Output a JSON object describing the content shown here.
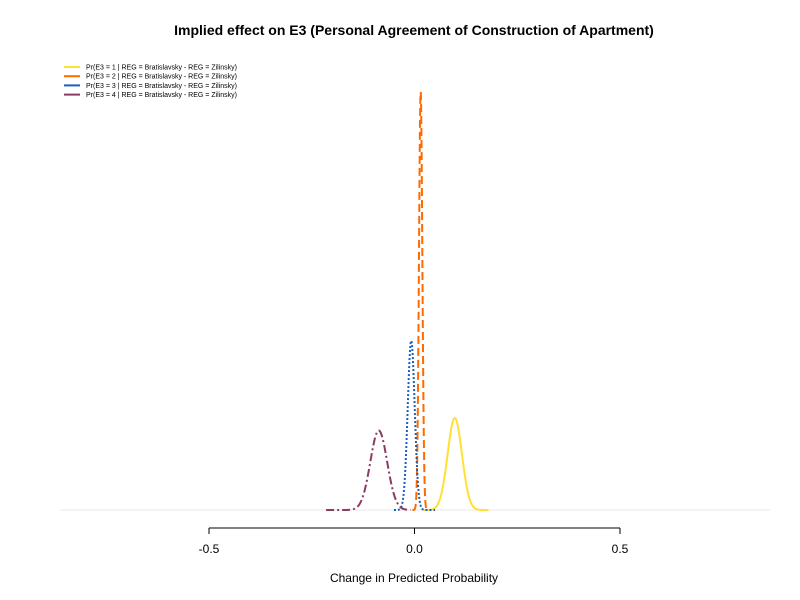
{
  "chart_data": {
    "type": "line",
    "title": "Implied effect on E3 (Personal Agreement of Construction of Apartment)",
    "xlabel": "Change in Predicted Probability",
    "ylabel": "",
    "xlim": [
      -0.5,
      0.5
    ],
    "x_ticks": [
      "-0.5",
      "0.0",
      "0.5"
    ],
    "x_tick_values": [
      -0.5,
      0.0,
      0.5
    ],
    "grid": false,
    "legend_position": "top-left",
    "series": [
      {
        "name": "Pr(E3 = 1 | REG = Bratislavsky - REG = Zilinsky)",
        "color": "#FFE033",
        "dash": "solid",
        "mean": 0.098,
        "sd": 0.0175,
        "lo": 0.02,
        "hi": 0.18,
        "peak": 0.22
      },
      {
        "name": "Pr(E3 = 2 | REG = Bratislavsky - REG = Zilinsky)",
        "color": "#FF6A00",
        "dash": "dashed",
        "mean": 0.015,
        "sd": 0.0041,
        "lo": -0.005,
        "hi": 0.035,
        "peak": 1.0
      },
      {
        "name": "Pr(E3 = 3 | REG = Bratislavsky - REG = Zilinsky)",
        "color": "#1B5FB8",
        "dash": "dotted",
        "mean": -0.008,
        "sd": 0.0085,
        "lo": -0.05,
        "hi": 0.05,
        "peak": 0.405
      },
      {
        "name": "Pr(E3 = 4 | REG = Bratislavsky - REG = Zilinsky)",
        "color": "#8B3A62",
        "dash": "dashdot",
        "mean": -0.087,
        "sd": 0.0205,
        "lo": -0.215,
        "hi": -0.01,
        "peak": 0.19
      }
    ]
  }
}
